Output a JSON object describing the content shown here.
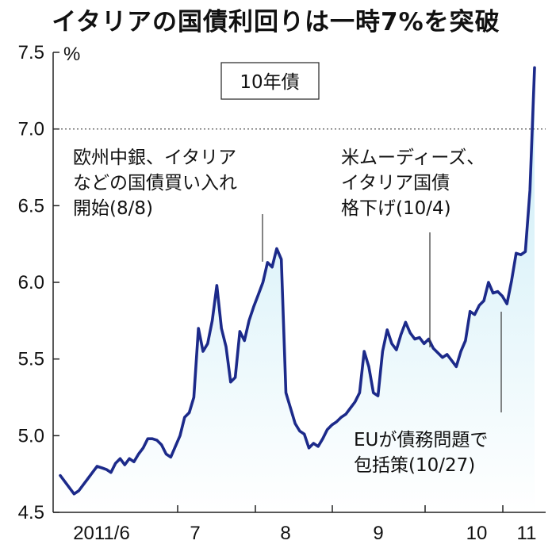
{
  "title": "イタリアの国債利回りは一時7%を突破",
  "chart_data": {
    "type": "area",
    "label_box": "10年債",
    "y_unit": "%",
    "ylim": [
      4.5,
      7.5
    ],
    "yticks": [
      "7.5",
      "7.0",
      "6.5",
      "6.0",
      "5.5",
      "5.0",
      "4.5"
    ],
    "ytick_values": [
      7.5,
      7.0,
      6.5,
      6.0,
      5.5,
      5.0,
      4.5
    ],
    "reference_line": 7.0,
    "xticks": [
      "2011/6",
      "7",
      "8",
      "9",
      "10",
      "11"
    ],
    "line_color": "#1c2a8a",
    "fill_top_color": "#c9ecf6",
    "series": [
      {
        "values": [
          4.74,
          4.7,
          4.66,
          4.62,
          4.64,
          4.68,
          4.72,
          4.76,
          4.8,
          4.79,
          4.78,
          4.76,
          4.82,
          4.85,
          4.81,
          4.85,
          4.83,
          4.88,
          4.92,
          4.98,
          4.98,
          4.97,
          4.94,
          4.88,
          4.86,
          4.93,
          5.0,
          5.12,
          5.15,
          5.25,
          5.7,
          5.55,
          5.6,
          5.75,
          5.98,
          5.7,
          5.58,
          5.35,
          5.38,
          5.68,
          5.62,
          5.75,
          5.84,
          5.92,
          6.0,
          6.13,
          6.1,
          6.22,
          6.15,
          5.28,
          5.18,
          5.08,
          5.03,
          5.01,
          4.92,
          4.95,
          4.93,
          4.98,
          5.04,
          5.07,
          5.09,
          5.12,
          5.14,
          5.18,
          5.22,
          5.28,
          5.55,
          5.45,
          5.28,
          5.26,
          5.55,
          5.69,
          5.6,
          5.56,
          5.66,
          5.74,
          5.67,
          5.63,
          5.64,
          5.6,
          5.63,
          5.57,
          5.54,
          5.51,
          5.53,
          5.49,
          5.45,
          5.55,
          5.62,
          5.81,
          5.79,
          5.85,
          5.88,
          6.0,
          5.93,
          5.94,
          5.91,
          5.86,
          6.01,
          6.19,
          6.18,
          6.2,
          6.6,
          7.4
        ]
      }
    ],
    "annotations": [
      {
        "lines": [
          "欧州中銀、イタリア",
          "などの国債買い入れ",
          "開始(8/8)"
        ]
      },
      {
        "lines": [
          "米ムーディーズ、",
          "イタリア国債",
          "格下げ(10/4)"
        ]
      },
      {
        "lines": [
          "EUが債務問題で",
          "包括策(10/27)"
        ]
      }
    ]
  }
}
